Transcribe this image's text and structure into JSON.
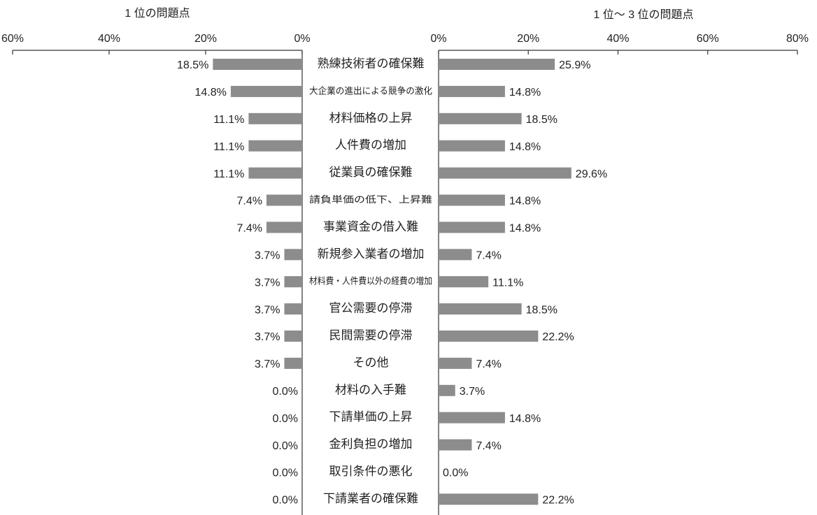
{
  "chart_data": [
    {
      "type": "bar",
      "orientation": "horizontal",
      "title": "1 位の問題点",
      "color": "#8c8c8c",
      "categories": [
        "熟練技術者の確保難",
        "大企業の進出による競争の激化",
        "材料価格の上昇",
        "人件費の増加",
        "従業員の確保難",
        "請負単価の低下、上昇難",
        "事業資金の借入難",
        "新規参入業者の増加",
        "材料費・人件費以外の経費の増加",
        "官公需要の停滞",
        "民間需要の停滞",
        "その他",
        "材料の入手難",
        "下請単価の上昇",
        "金利負担の増加",
        "取引条件の悪化",
        "下請業者の確保難"
      ],
      "values": [
        18.5,
        14.8,
        11.1,
        11.1,
        11.1,
        7.4,
        7.4,
        3.7,
        3.7,
        3.7,
        3.7,
        3.7,
        0,
        0,
        0,
        0,
        0
      ],
      "value_labels": [
        "18.5%",
        "14.8%",
        "11.1%",
        "11.1%",
        "11.1%",
        "7.4%",
        "7.4%",
        "3.7%",
        "3.7%",
        "3.7%",
        "3.7%",
        "3.7%",
        "0.0%",
        "0.0%",
        "0.0%",
        "0.0%",
        "0.0%"
      ],
      "xlim": [
        60,
        0
      ],
      "xticks": [
        {
          "value": 60,
          "label": "60%"
        },
        {
          "value": 40,
          "label": "40%"
        },
        {
          "value": 20,
          "label": "20%"
        },
        {
          "value": 0,
          "label": "0%"
        }
      ]
    },
    {
      "type": "bar",
      "orientation": "horizontal",
      "title": "1 位～ 3 位の問題点",
      "color": "#8c8c8c",
      "values": [
        25.9,
        14.8,
        18.5,
        14.8,
        29.6,
        14.8,
        14.8,
        7.4,
        11.1,
        18.5,
        22.2,
        7.4,
        3.7,
        14.8,
        7.4,
        0,
        22.2
      ],
      "value_labels": [
        "25.9%",
        "14.8%",
        "18.5%",
        "14.8%",
        "29.6%",
        "14.8%",
        "14.8%",
        "7.4%",
        "11.1%",
        "18.5%",
        "22.2%",
        "7.4%",
        "3.7%",
        "14.8%",
        "7.4%",
        "0.0%",
        "22.2%"
      ],
      "xlim": [
        0,
        80
      ],
      "xticks": [
        {
          "value": 0,
          "label": "0%"
        },
        {
          "value": 20,
          "label": "20%"
        },
        {
          "value": 40,
          "label": "40%"
        },
        {
          "value": 60,
          "label": "60%"
        },
        {
          "value": 80,
          "label": "80%"
        }
      ]
    }
  ]
}
